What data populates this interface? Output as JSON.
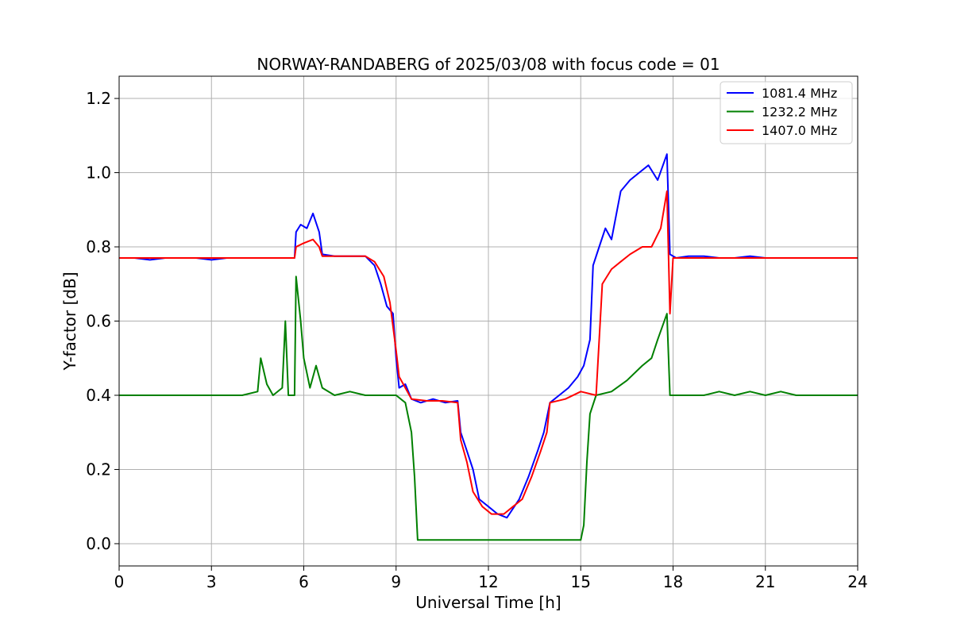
{
  "chart_data": {
    "type": "line",
    "title": "NORWAY-RANDABERG of 2025/03/08 with focus code = 01",
    "xlabel": "Universal Time [h]",
    "ylabel": "Y-factor [dB]",
    "xlim": [
      0,
      24
    ],
    "ylim": [
      -0.06,
      1.26
    ],
    "xticks": [
      0,
      3,
      6,
      9,
      12,
      15,
      18,
      21,
      24
    ],
    "xtick_labels": [
      "0",
      "3",
      "6",
      "9",
      "12",
      "15",
      "18",
      "21",
      "24"
    ],
    "yticks": [
      0.0,
      0.2,
      0.4,
      0.6,
      0.8,
      1.0,
      1.2
    ],
    "ytick_labels": [
      "0.0",
      "0.2",
      "0.4",
      "0.6",
      "0.8",
      "1.0",
      "1.2"
    ],
    "grid": true,
    "legend_position": "upper-right",
    "series": [
      {
        "name": "1081.4 MHz",
        "color": "#0000ff",
        "points": [
          [
            0.0,
            0.77
          ],
          [
            0.5,
            0.77
          ],
          [
            1.0,
            0.765
          ],
          [
            1.5,
            0.77
          ],
          [
            2.0,
            0.77
          ],
          [
            2.5,
            0.77
          ],
          [
            3.0,
            0.765
          ],
          [
            3.5,
            0.77
          ],
          [
            4.0,
            0.77
          ],
          [
            4.5,
            0.77
          ],
          [
            5.0,
            0.77
          ],
          [
            5.5,
            0.77
          ],
          [
            5.7,
            0.77
          ],
          [
            5.75,
            0.84
          ],
          [
            5.9,
            0.86
          ],
          [
            6.1,
            0.85
          ],
          [
            6.3,
            0.89
          ],
          [
            6.5,
            0.84
          ],
          [
            6.6,
            0.78
          ],
          [
            7.0,
            0.775
          ],
          [
            7.5,
            0.775
          ],
          [
            8.0,
            0.775
          ],
          [
            8.3,
            0.75
          ],
          [
            8.5,
            0.7
          ],
          [
            8.7,
            0.64
          ],
          [
            8.9,
            0.62
          ],
          [
            9.0,
            0.5
          ],
          [
            9.1,
            0.42
          ],
          [
            9.3,
            0.43
          ],
          [
            9.5,
            0.39
          ],
          [
            9.8,
            0.38
          ],
          [
            10.2,
            0.39
          ],
          [
            10.6,
            0.38
          ],
          [
            11.0,
            0.385
          ],
          [
            11.1,
            0.3
          ],
          [
            11.3,
            0.25
          ],
          [
            11.5,
            0.2
          ],
          [
            11.7,
            0.12
          ],
          [
            12.0,
            0.1
          ],
          [
            12.3,
            0.08
          ],
          [
            12.6,
            0.07
          ],
          [
            13.0,
            0.12
          ],
          [
            13.3,
            0.18
          ],
          [
            13.6,
            0.25
          ],
          [
            13.8,
            0.3
          ],
          [
            14.0,
            0.38
          ],
          [
            14.3,
            0.4
          ],
          [
            14.6,
            0.42
          ],
          [
            14.9,
            0.45
          ],
          [
            15.1,
            0.48
          ],
          [
            15.3,
            0.55
          ],
          [
            15.4,
            0.75
          ],
          [
            15.6,
            0.8
          ],
          [
            15.8,
            0.85
          ],
          [
            16.0,
            0.82
          ],
          [
            16.3,
            0.95
          ],
          [
            16.6,
            0.98
          ],
          [
            16.9,
            1.0
          ],
          [
            17.2,
            1.02
          ],
          [
            17.5,
            0.98
          ],
          [
            17.8,
            1.05
          ],
          [
            17.9,
            0.78
          ],
          [
            18.1,
            0.77
          ],
          [
            18.5,
            0.775
          ],
          [
            19.0,
            0.775
          ],
          [
            19.5,
            0.77
          ],
          [
            20.0,
            0.77
          ],
          [
            20.5,
            0.775
          ],
          [
            21.0,
            0.77
          ],
          [
            21.5,
            0.77
          ],
          [
            22.0,
            0.77
          ],
          [
            22.5,
            0.77
          ],
          [
            23.0,
            0.77
          ],
          [
            23.5,
            0.77
          ],
          [
            24.0,
            0.77
          ]
        ]
      },
      {
        "name": "1232.2 MHz",
        "color": "#008000",
        "points": [
          [
            0.0,
            0.4
          ],
          [
            0.5,
            0.4
          ],
          [
            1.0,
            0.4
          ],
          [
            1.5,
            0.4
          ],
          [
            2.0,
            0.4
          ],
          [
            2.5,
            0.4
          ],
          [
            3.0,
            0.4
          ],
          [
            3.5,
            0.4
          ],
          [
            4.0,
            0.4
          ],
          [
            4.5,
            0.41
          ],
          [
            4.6,
            0.5
          ],
          [
            4.8,
            0.43
          ],
          [
            5.0,
            0.4
          ],
          [
            5.3,
            0.42
          ],
          [
            5.4,
            0.6
          ],
          [
            5.5,
            0.4
          ],
          [
            5.7,
            0.4
          ],
          [
            5.75,
            0.72
          ],
          [
            5.9,
            0.6
          ],
          [
            6.0,
            0.5
          ],
          [
            6.2,
            0.42
          ],
          [
            6.4,
            0.48
          ],
          [
            6.6,
            0.42
          ],
          [
            7.0,
            0.4
          ],
          [
            7.5,
            0.41
          ],
          [
            8.0,
            0.4
          ],
          [
            8.5,
            0.4
          ],
          [
            9.0,
            0.4
          ],
          [
            9.3,
            0.38
          ],
          [
            9.5,
            0.3
          ],
          [
            9.6,
            0.18
          ],
          [
            9.7,
            0.01
          ],
          [
            10.0,
            0.01
          ],
          [
            10.5,
            0.01
          ],
          [
            11.0,
            0.01
          ],
          [
            11.5,
            0.01
          ],
          [
            12.0,
            0.01
          ],
          [
            12.5,
            0.01
          ],
          [
            13.0,
            0.01
          ],
          [
            13.5,
            0.01
          ],
          [
            14.0,
            0.01
          ],
          [
            14.5,
            0.01
          ],
          [
            15.0,
            0.01
          ],
          [
            15.1,
            0.05
          ],
          [
            15.2,
            0.22
          ],
          [
            15.3,
            0.35
          ],
          [
            15.5,
            0.4
          ],
          [
            16.0,
            0.41
          ],
          [
            16.5,
            0.44
          ],
          [
            17.0,
            0.48
          ],
          [
            17.3,
            0.5
          ],
          [
            17.5,
            0.55
          ],
          [
            17.8,
            0.62
          ],
          [
            17.9,
            0.4
          ],
          [
            18.0,
            0.4
          ],
          [
            18.5,
            0.4
          ],
          [
            19.0,
            0.4
          ],
          [
            19.5,
            0.41
          ],
          [
            20.0,
            0.4
          ],
          [
            20.5,
            0.41
          ],
          [
            21.0,
            0.4
          ],
          [
            21.5,
            0.41
          ],
          [
            22.0,
            0.4
          ],
          [
            22.5,
            0.4
          ],
          [
            23.0,
            0.4
          ],
          [
            23.5,
            0.4
          ],
          [
            24.0,
            0.4
          ]
        ]
      },
      {
        "name": "1407.0 MHz",
        "color": "#ff0000",
        "points": [
          [
            0.0,
            0.77
          ],
          [
            0.5,
            0.77
          ],
          [
            1.0,
            0.77
          ],
          [
            1.5,
            0.77
          ],
          [
            2.0,
            0.77
          ],
          [
            2.5,
            0.77
          ],
          [
            3.0,
            0.77
          ],
          [
            3.5,
            0.77
          ],
          [
            4.0,
            0.77
          ],
          [
            4.5,
            0.77
          ],
          [
            5.0,
            0.77
          ],
          [
            5.5,
            0.77
          ],
          [
            5.7,
            0.77
          ],
          [
            5.75,
            0.8
          ],
          [
            6.0,
            0.81
          ],
          [
            6.3,
            0.82
          ],
          [
            6.5,
            0.8
          ],
          [
            6.6,
            0.775
          ],
          [
            7.0,
            0.775
          ],
          [
            7.5,
            0.775
          ],
          [
            8.0,
            0.775
          ],
          [
            8.3,
            0.76
          ],
          [
            8.6,
            0.72
          ],
          [
            8.8,
            0.65
          ],
          [
            9.0,
            0.52
          ],
          [
            9.1,
            0.45
          ],
          [
            9.3,
            0.42
          ],
          [
            9.5,
            0.39
          ],
          [
            10.0,
            0.385
          ],
          [
            10.5,
            0.385
          ],
          [
            11.0,
            0.38
          ],
          [
            11.1,
            0.28
          ],
          [
            11.3,
            0.22
          ],
          [
            11.5,
            0.14
          ],
          [
            11.8,
            0.1
          ],
          [
            12.1,
            0.08
          ],
          [
            12.5,
            0.08
          ],
          [
            12.8,
            0.1
          ],
          [
            13.1,
            0.12
          ],
          [
            13.4,
            0.18
          ],
          [
            13.7,
            0.25
          ],
          [
            13.9,
            0.3
          ],
          [
            14.0,
            0.38
          ],
          [
            14.5,
            0.39
          ],
          [
            15.0,
            0.41
          ],
          [
            15.5,
            0.4
          ],
          [
            15.6,
            0.55
          ],
          [
            15.7,
            0.7
          ],
          [
            16.0,
            0.74
          ],
          [
            16.3,
            0.76
          ],
          [
            16.6,
            0.78
          ],
          [
            17.0,
            0.8
          ],
          [
            17.3,
            0.8
          ],
          [
            17.6,
            0.85
          ],
          [
            17.8,
            0.95
          ],
          [
            17.9,
            0.62
          ],
          [
            18.0,
            0.77
          ],
          [
            18.5,
            0.77
          ],
          [
            19.0,
            0.77
          ],
          [
            19.5,
            0.77
          ],
          [
            20.0,
            0.77
          ],
          [
            20.5,
            0.77
          ],
          [
            21.0,
            0.77
          ],
          [
            21.5,
            0.77
          ],
          [
            22.0,
            0.77
          ],
          [
            22.5,
            0.77
          ],
          [
            23.0,
            0.77
          ],
          [
            23.5,
            0.77
          ],
          [
            24.0,
            0.77
          ]
        ]
      }
    ]
  }
}
